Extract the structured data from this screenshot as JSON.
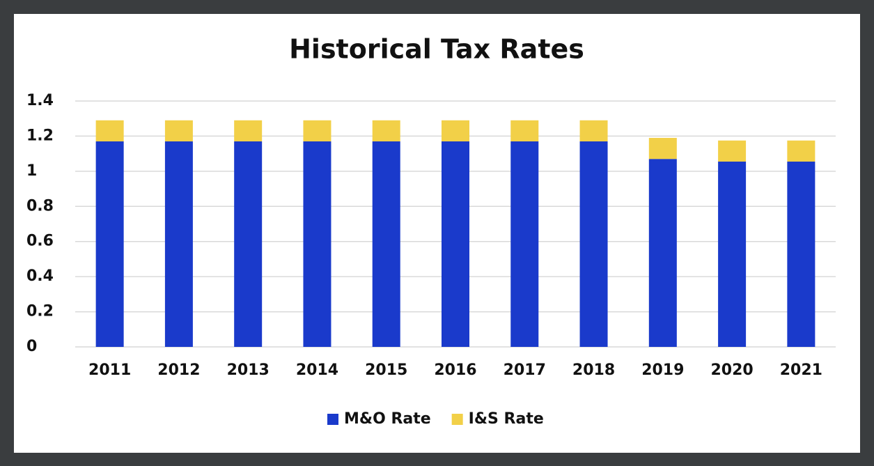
{
  "chart_data": {
    "type": "stacked-bar",
    "title": "Historical Tax Rates",
    "categories": [
      "2011",
      "2012",
      "2013",
      "2014",
      "2015",
      "2016",
      "2017",
      "2018",
      "2019",
      "2020",
      "2021"
    ],
    "series": [
      {
        "name": "M&O Rate",
        "color": "#1a3acb",
        "values": [
          1.17,
          1.17,
          1.17,
          1.17,
          1.17,
          1.17,
          1.17,
          1.17,
          1.07,
          1.055,
          1.055
        ]
      },
      {
        "name": "I&S Rate",
        "color": "#f2d048",
        "values": [
          0.12,
          0.12,
          0.12,
          0.12,
          0.12,
          0.12,
          0.12,
          0.12,
          0.12,
          0.12,
          0.12
        ]
      }
    ],
    "ylim": [
      0,
      1.4
    ],
    "yticks": [
      0,
      0.2,
      0.4,
      0.6,
      0.8,
      1,
      1.2,
      1.4
    ],
    "grid": true,
    "legend": "bottom"
  }
}
